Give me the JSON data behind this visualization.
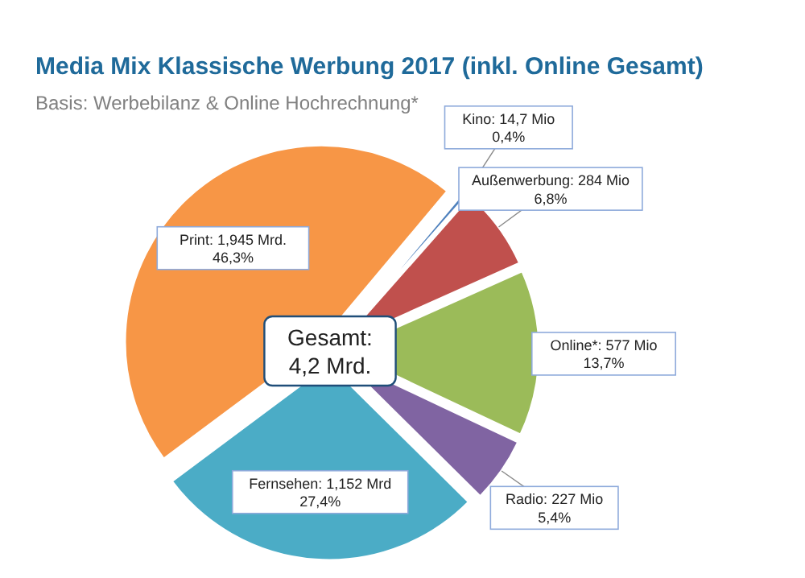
{
  "chart_data": {
    "type": "pie",
    "title": "Media Mix Klassische Werbung 2017 (inkl. Online Gesamt)",
    "subtitle": "Basis: Werbebilanz & Online Hochrechnung*",
    "categories": [
      "Kino",
      "Außenwerbung",
      "Online*",
      "Radio",
      "Fernsehen",
      "Print"
    ],
    "values": [
      0.4,
      6.8,
      13.7,
      5.4,
      27.4,
      46.3
    ],
    "colors": [
      "#4f81bd",
      "#c0504d",
      "#9bbb59",
      "#8064a2",
      "#4bacc6",
      "#f79646"
    ],
    "value_labels": [
      "14,7 Mio\n0,4%",
      "284 Mio\n6,8%",
      "577 Mio\n13,7%",
      "227 Mio\n5,4%",
      "1,152 Mrd\n27,4%",
      "1,945 Mrd.\n46,3%"
    ],
    "annotations": [
      "Gesamt:\n4,2 Mrd."
    ]
  }
}
